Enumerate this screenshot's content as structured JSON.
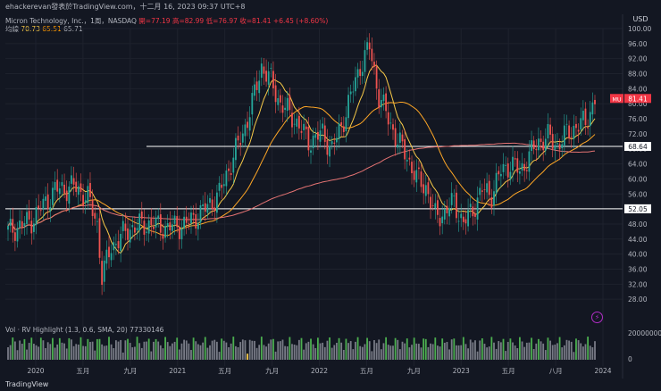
{
  "header": {
    "author": "ehackerevan發表於TradingView.com，十二月 16, 2023 09:37 UTC+8",
    "currency": "USD"
  },
  "legend": {
    "symbol": "Micron Technology, Inc.，1周，NASDAQ",
    "open": "開=77.19",
    "high": "高=82.99",
    "low": "低=76.97",
    "close": "收=81.41",
    "change": "+6.45 (+8.60%)",
    "ma_label": "均線",
    "ma_values": [
      "70.73",
      "65.51",
      "65.71"
    ]
  },
  "volume_legend": {
    "label": "Vol · RV Highlight (1.3, 0.6, SMA, 20)",
    "value": "77330146"
  },
  "footer": {
    "brand": "TradingView"
  },
  "chart_data": {
    "type": "candlestick",
    "price_axis": {
      "min": 24,
      "max": 100,
      "ticks": [
        28,
        32,
        36,
        40,
        44,
        48,
        52,
        56,
        60,
        64,
        68,
        72,
        76,
        80,
        84,
        88,
        92,
        96,
        100
      ]
    },
    "time_labels": [
      "2020",
      "五月",
      "九月",
      "2021",
      "五月",
      "九月",
      "2022",
      "五月",
      "九月",
      "2023",
      "五月",
      "八月",
      "2024"
    ],
    "horizontal_lines": [
      68.64,
      52.05
    ],
    "last_price": {
      "ticker": "MU",
      "value": 81.41
    },
    "volume_axis": {
      "ticks": [
        "200000000",
        "0"
      ]
    },
    "colors": {
      "up": "#26a69a",
      "down": "#ef5350",
      "sma_short": "#f7c948",
      "sma_mid": "#ffa726",
      "sma_long": "#e57373",
      "volume_normal": "#787b86",
      "volume_high": "#4caf50",
      "volume_low": "#f7c948"
    },
    "weekly_close_anchors": [
      [
        0,
        46
      ],
      [
        10,
        49
      ],
      [
        20,
        57
      ],
      [
        28,
        58
      ],
      [
        34,
        55
      ],
      [
        38,
        48
      ],
      [
        40,
        34
      ],
      [
        44,
        42
      ],
      [
        52,
        47
      ],
      [
        60,
        48
      ],
      [
        68,
        47
      ],
      [
        76,
        48
      ],
      [
        84,
        52
      ],
      [
        90,
        56
      ],
      [
        96,
        66
      ],
      [
        100,
        72
      ],
      [
        104,
        80
      ],
      [
        108,
        90
      ],
      [
        112,
        86
      ],
      [
        116,
        80
      ],
      [
        122,
        76
      ],
      [
        128,
        70
      ],
      [
        134,
        72
      ],
      [
        138,
        68
      ],
      [
        142,
        74
      ],
      [
        146,
        82
      ],
      [
        150,
        90
      ],
      [
        154,
        95
      ],
      [
        158,
        82
      ],
      [
        162,
        76
      ],
      [
        166,
        70
      ],
      [
        170,
        66
      ],
      [
        174,
        60
      ],
      [
        178,
        58
      ],
      [
        182,
        50
      ],
      [
        186,
        51
      ],
      [
        190,
        54
      ],
      [
        194,
        48
      ],
      [
        198,
        52
      ],
      [
        202,
        57
      ],
      [
        206,
        56
      ],
      [
        210,
        62
      ],
      [
        214,
        64
      ],
      [
        218,
        62
      ],
      [
        222,
        66
      ],
      [
        226,
        70
      ],
      [
        230,
        71
      ],
      [
        234,
        69
      ],
      [
        238,
        72
      ],
      [
        242,
        74
      ],
      [
        246,
        75
      ],
      [
        250,
        81
      ]
    ],
    "note_x_unit": "weeks since first bar"
  }
}
